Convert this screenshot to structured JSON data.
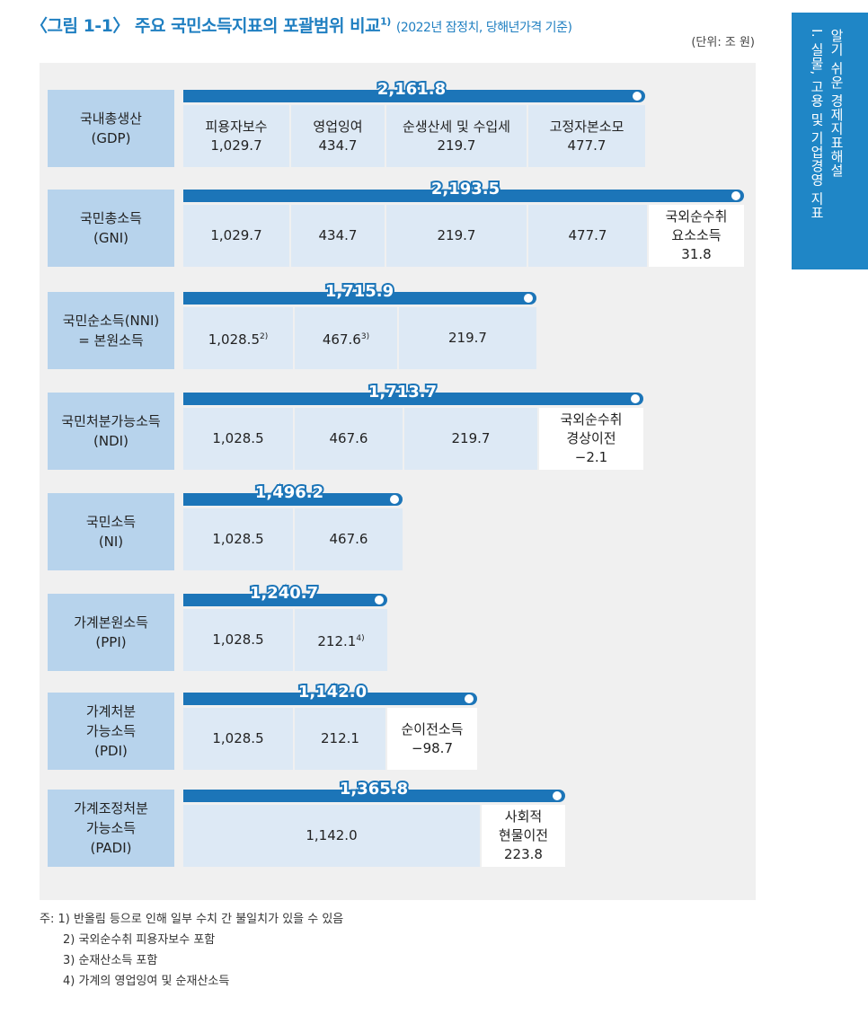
{
  "title": {
    "main": "〈그림 1-1〉 주요 국민소득지표의 포괄범위 비교",
    "sup": "1)",
    "sub": "(2022년 잠정치, 당해년가격 기준)"
  },
  "unit": "(단위: 조 원)",
  "side_tab": {
    "line1": "알기 쉬운 경제지표해설",
    "line2": "I. 실물, 고용 및 기업경영 지표"
  },
  "rows": [
    {
      "label": [
        "국내총생산",
        "(GDP)"
      ],
      "total": "2,161.8",
      "cells": [
        {
          "lines": [
            "피용자보수",
            "1,029.7"
          ]
        },
        {
          "lines": [
            "영업잉여",
            "434.7"
          ]
        },
        {
          "lines": [
            "순생산세 및 수입세",
            "219.7"
          ]
        },
        {
          "lines": [
            "고정자본소모",
            "477.7"
          ]
        }
      ]
    },
    {
      "label": [
        "국민총소득",
        "(GNI)"
      ],
      "total": "2,193.5",
      "cells": [
        {
          "lines": [
            "1,029.7"
          ]
        },
        {
          "lines": [
            "434.7"
          ]
        },
        {
          "lines": [
            "219.7"
          ]
        },
        {
          "lines": [
            "477.7"
          ]
        },
        {
          "lines": [
            "국외순수취",
            "요소소득",
            "31.8"
          ]
        }
      ]
    },
    {
      "label": [
        "국민순소득(NNI)",
        "= 본원소득"
      ],
      "total": "1,715.9",
      "cells": [
        {
          "lines": [
            "1,028.5"
          ],
          "sup": "2)"
        },
        {
          "lines": [
            "467.6"
          ],
          "sup": "3)"
        },
        {
          "lines": [
            "219.7"
          ]
        }
      ]
    },
    {
      "label": [
        "국민처분가능소득",
        "(NDI)"
      ],
      "total": "1,713.7",
      "cells": [
        {
          "lines": [
            "1,028.5"
          ]
        },
        {
          "lines": [
            "467.6"
          ]
        },
        {
          "lines": [
            "219.7"
          ]
        },
        {
          "lines": [
            "국외순수취",
            "경상이전",
            "−2.1"
          ]
        }
      ]
    },
    {
      "label": [
        "국민소득",
        "(NI)"
      ],
      "total": "1,496.2",
      "cells": [
        {
          "lines": [
            "1,028.5"
          ]
        },
        {
          "lines": [
            "467.6"
          ]
        }
      ]
    },
    {
      "label": [
        "가계본원소득",
        "(PPI)"
      ],
      "total": "1,240.7",
      "cells": [
        {
          "lines": [
            "1,028.5"
          ]
        },
        {
          "lines": [
            "212.1"
          ],
          "sup": "4)"
        }
      ]
    },
    {
      "label": [
        "가계처분",
        "가능소득",
        "(PDI)"
      ],
      "total": "1,142.0",
      "cells": [
        {
          "lines": [
            "1,028.5"
          ]
        },
        {
          "lines": [
            "212.1"
          ]
        },
        {
          "lines": [
            "순이전소득",
            "−98.7"
          ]
        }
      ]
    },
    {
      "label": [
        "가계조정처분",
        "가능소득",
        "(PADI)"
      ],
      "total": "1,365.8",
      "cells": [
        {
          "lines": [
            "1,142.0"
          ]
        },
        {
          "lines": [
            "사회적",
            "현물이전",
            "223.8"
          ]
        }
      ]
    }
  ],
  "notes": [
    "주: 1) 반올림 등으로 인해 일부 수치 간 불일치가 있을 수 있음",
    "2) 국외순수취 피용자보수 포함",
    "3) 순재산소득 포함",
    "4) 가계의 영업잉여 및 순재산소득"
  ]
}
